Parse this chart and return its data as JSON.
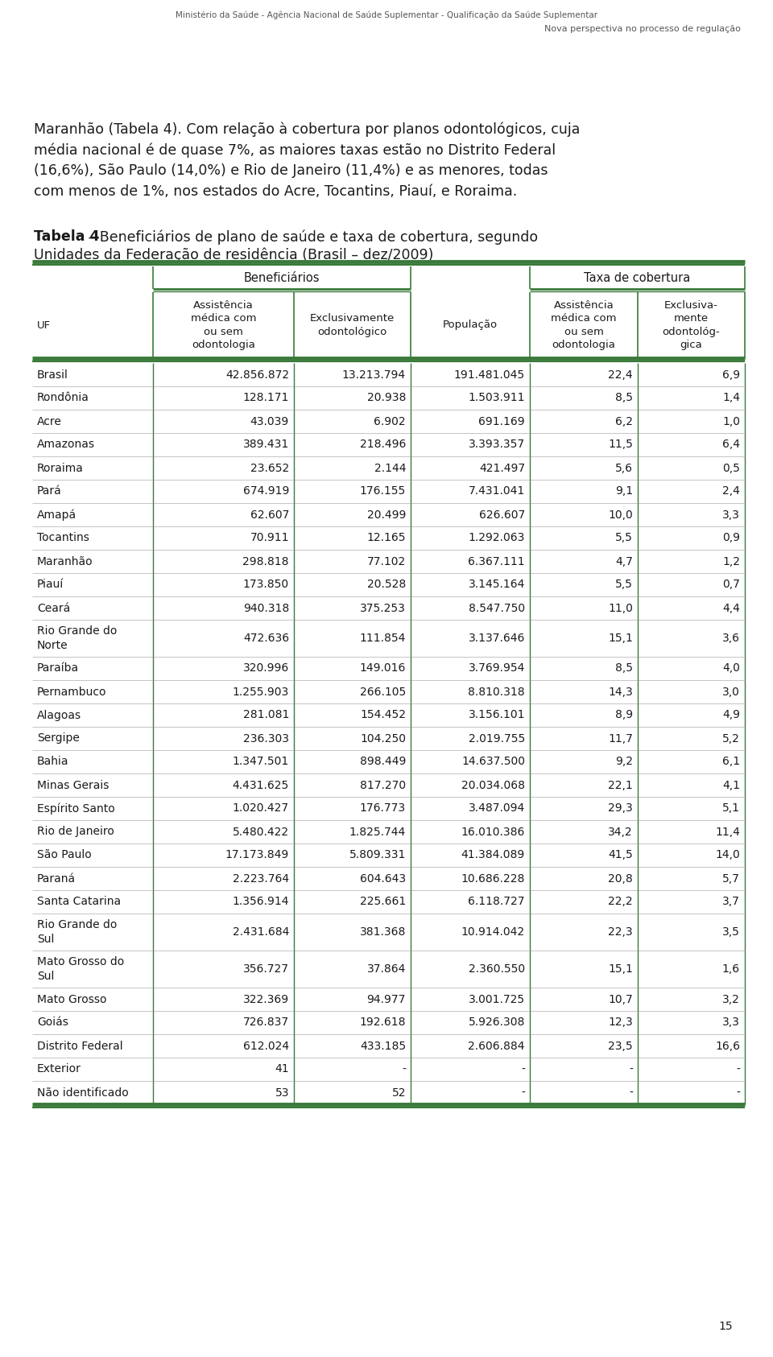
{
  "header1": "Ministério da Saúde - Agência Nacional de Saúde Suplementar - Qualificação da Saúde Suplementar",
  "header2": "Nova perspectiva no processo de regulação",
  "intro_lines": [
    "Maranhão (Tabela 4). Com relação à cobertura por planos odontológicos, cuja",
    "média nacional é de quase 7%, as maiores taxas estão no Distrito Federal",
    "(16,6%), São Paulo (14,0%) e Rio de Janeiro (11,4%) e as menores, todas",
    "com menos de 1%, nos estados do Acre, Tocantins, Piauí, e Roraima."
  ],
  "table_title_bold": "Tabela 4",
  "table_title_rest": " – Beneficiários de plano de saúde e taxa de cobertura, segundo",
  "table_title_line2": "Unidades da Federação de residência (Brasil – dez/2009)",
  "rows": [
    [
      "Brasil",
      "42.856.872",
      "13.213.794",
      "191.481.045",
      "22,4",
      "6,9"
    ],
    [
      "Rondônia",
      "128.171",
      "20.938",
      "1.503.911",
      "8,5",
      "1,4"
    ],
    [
      "Acre",
      "43.039",
      "6.902",
      "691.169",
      "6,2",
      "1,0"
    ],
    [
      "Amazonas",
      "389.431",
      "218.496",
      "3.393.357",
      "11,5",
      "6,4"
    ],
    [
      "Roraima",
      "23.652",
      "2.144",
      "421.497",
      "5,6",
      "0,5"
    ],
    [
      "Pará",
      "674.919",
      "176.155",
      "7.431.041",
      "9,1",
      "2,4"
    ],
    [
      "Amapá",
      "62.607",
      "20.499",
      "626.607",
      "10,0",
      "3,3"
    ],
    [
      "Tocantins",
      "70.911",
      "12.165",
      "1.292.063",
      "5,5",
      "0,9"
    ],
    [
      "Maranhão",
      "298.818",
      "77.102",
      "6.367.111",
      "4,7",
      "1,2"
    ],
    [
      "Piauí",
      "173.850",
      "20.528",
      "3.145.164",
      "5,5",
      "0,7"
    ],
    [
      "Ceará",
      "940.318",
      "375.253",
      "8.547.750",
      "11,0",
      "4,4"
    ],
    [
      "Rio Grande do\nNorte",
      "472.636",
      "111.854",
      "3.137.646",
      "15,1",
      "3,6"
    ],
    [
      "Paraíba",
      "320.996",
      "149.016",
      "3.769.954",
      "8,5",
      "4,0"
    ],
    [
      "Pernambuco",
      "1.255.903",
      "266.105",
      "8.810.318",
      "14,3",
      "3,0"
    ],
    [
      "Alagoas",
      "281.081",
      "154.452",
      "3.156.101",
      "8,9",
      "4,9"
    ],
    [
      "Sergipe",
      "236.303",
      "104.250",
      "2.019.755",
      "11,7",
      "5,2"
    ],
    [
      "Bahia",
      "1.347.501",
      "898.449",
      "14.637.500",
      "9,2",
      "6,1"
    ],
    [
      "Minas Gerais",
      "4.431.625",
      "817.270",
      "20.034.068",
      "22,1",
      "4,1"
    ],
    [
      "Espírito Santo",
      "1.020.427",
      "176.773",
      "3.487.094",
      "29,3",
      "5,1"
    ],
    [
      "Rio de Janeiro",
      "5.480.422",
      "1.825.744",
      "16.010.386",
      "34,2",
      "11,4"
    ],
    [
      "São Paulo",
      "17.173.849",
      "5.809.331",
      "41.384.089",
      "41,5",
      "14,0"
    ],
    [
      "Paraná",
      "2.223.764",
      "604.643",
      "10.686.228",
      "20,8",
      "5,7"
    ],
    [
      "Santa Catarina",
      "1.356.914",
      "225.661",
      "6.118.727",
      "22,2",
      "3,7"
    ],
    [
      "Rio Grande do\nSul",
      "2.431.684",
      "381.368",
      "10.914.042",
      "22,3",
      "3,5"
    ],
    [
      "Mato Grosso do\nSul",
      "356.727",
      "37.864",
      "2.360.550",
      "15,1",
      "1,6"
    ],
    [
      "Mato Grosso",
      "322.369",
      "94.977",
      "3.001.725",
      "10,7",
      "3,2"
    ],
    [
      "Goiás",
      "726.837",
      "192.618",
      "5.926.308",
      "12,3",
      "3,3"
    ],
    [
      "Distrito Federal",
      "612.024",
      "433.185",
      "2.606.884",
      "23,5",
      "16,6"
    ],
    [
      "Exterior",
      "41",
      "-",
      "-",
      "-",
      "-"
    ],
    [
      "Não identificado",
      "53",
      "52",
      "-",
      "-",
      "-"
    ]
  ],
  "footer_page": "15",
  "green": "#3a7a3a",
  "light_line": "#bbbbbb",
  "black": "#1a1a1a",
  "header_gray": "#555555"
}
